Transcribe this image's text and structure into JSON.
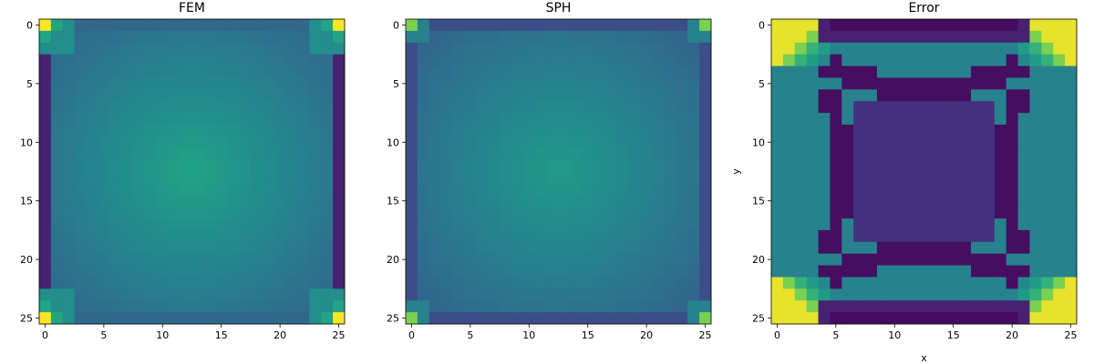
{
  "chart_data": [
    {
      "type": "heatmap",
      "title": "FEM",
      "xlabel": "",
      "ylabel": "",
      "grid_size": [
        26,
        26
      ],
      "xlim": [
        -0.5,
        25.5
      ],
      "ylim": [
        25.5,
        -0.5
      ],
      "xticks": [
        0,
        5,
        10,
        15,
        20,
        25
      ],
      "yticks": [
        0,
        5,
        10,
        15,
        20,
        25
      ],
      "colormap": "viridis",
      "value_range": [
        0,
        1
      ],
      "grid": false,
      "field_model": "fem"
    },
    {
      "type": "heatmap",
      "title": "SPH",
      "xlabel": "",
      "ylabel": "",
      "grid_size": [
        26,
        26
      ],
      "xlim": [
        -0.5,
        25.5
      ],
      "ylim": [
        25.5,
        -0.5
      ],
      "xticks": [
        0,
        5,
        10,
        15,
        20,
        25
      ],
      "yticks": [
        0,
        5,
        10,
        15,
        20,
        25
      ],
      "colormap": "viridis",
      "value_range": [
        0,
        1
      ],
      "grid": false,
      "field_model": "sph"
    },
    {
      "type": "heatmap",
      "title": "Error",
      "xlabel": "x",
      "ylabel": "y",
      "grid_size": [
        26,
        26
      ],
      "xlim": [
        -0.5,
        25.5
      ],
      "ylim": [
        25.5,
        -0.5
      ],
      "xticks": [
        0,
        5,
        10,
        15,
        20,
        25
      ],
      "yticks": [
        0,
        5,
        10,
        15,
        20,
        25
      ],
      "colormap": "viridis",
      "value_range": [
        0,
        1
      ],
      "grid": false,
      "field_model": "error"
    }
  ]
}
